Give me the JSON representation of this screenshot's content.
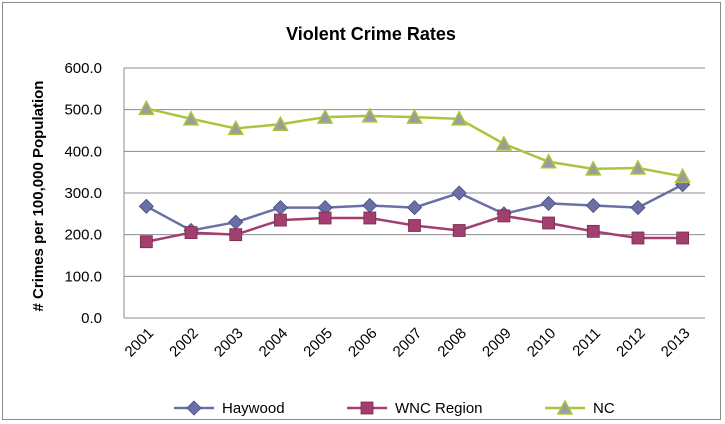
{
  "chart_data": {
    "type": "line",
    "title": "Violent Crime Rates",
    "xlabel": "",
    "ylabel": "# Crimes per 100,000 Population",
    "categories": [
      "2001",
      "2002",
      "2003",
      "2004",
      "2005",
      "2006",
      "2007",
      "2008",
      "2009",
      "2010",
      "2011",
      "2012",
      "2013"
    ],
    "ylim": [
      0,
      600
    ],
    "yticks": [
      0,
      100,
      200,
      300,
      400,
      500,
      600
    ],
    "ytick_labels": [
      "0.0",
      "100.0",
      "200.0",
      "300.0",
      "400.0",
      "500.0",
      "600.0"
    ],
    "grid": true,
    "legend_position": "bottom",
    "series": [
      {
        "name": "Haywood",
        "color": "#6b6fa8",
        "marker": "diamond",
        "values": [
          268,
          210,
          230,
          265,
          265,
          270,
          265,
          300,
          250,
          275,
          270,
          265,
          320
        ]
      },
      {
        "name": "WNC Region",
        "color": "#a23f6f",
        "marker": "square",
        "values": [
          183,
          205,
          200,
          235,
          240,
          240,
          222,
          210,
          245,
          228,
          208,
          192,
          192
        ]
      },
      {
        "name": "NC",
        "color": "#a8c63d",
        "marker": "triangle",
        "values": [
          503,
          478,
          455,
          465,
          482,
          485,
          482,
          478,
          418,
          375,
          358,
          360,
          340
        ]
      }
    ]
  }
}
